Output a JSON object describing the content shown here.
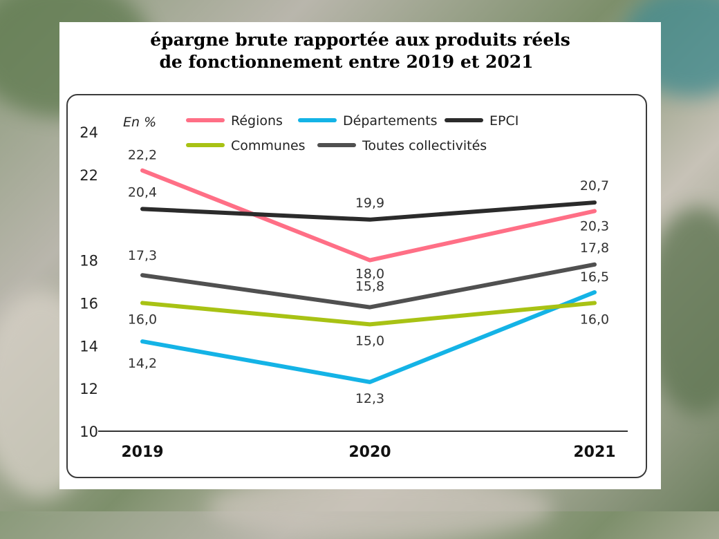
{
  "chart_data": {
    "type": "line",
    "title": "épargne brute rapportée aux produits réels",
    "title_line2": "de fonctionnement entre 2019 et 2021",
    "unit_label": "En %",
    "x": [
      "2019",
      "2020",
      "2021"
    ],
    "ylim": [
      10,
      24
    ],
    "yticks": [
      "24",
      "22",
      "18",
      "16",
      "14",
      "12",
      "10"
    ],
    "ytick_values": [
      24,
      22,
      18,
      16,
      14,
      12,
      10
    ],
    "grid": false,
    "legend_position": "top",
    "series": [
      {
        "name": "Régions",
        "color": "#ff6f86",
        "values": [
          22.2,
          18.0,
          20.3
        ],
        "labels": [
          "22,2",
          "18,0",
          "20,3"
        ]
      },
      {
        "name": "Départements",
        "color": "#14b3e6",
        "values": [
          14.2,
          12.3,
          16.5
        ],
        "labels": [
          "14,2",
          "12,3",
          "16,5"
        ]
      },
      {
        "name": "EPCI",
        "color": "#2b2b2b",
        "values": [
          20.4,
          19.9,
          20.7
        ],
        "labels": [
          "20,4",
          "19,9",
          "20,7"
        ]
      },
      {
        "name": "Communes",
        "color": "#a8c214",
        "values": [
          16.0,
          15.0,
          16.0
        ],
        "labels": [
          "16,0",
          "15,0",
          "16,0"
        ]
      },
      {
        "name": "Toutes collectivités",
        "color": "#505050",
        "values": [
          17.3,
          15.8,
          17.8
        ],
        "labels": [
          "17,3",
          "15,8",
          "17,8"
        ]
      }
    ]
  }
}
